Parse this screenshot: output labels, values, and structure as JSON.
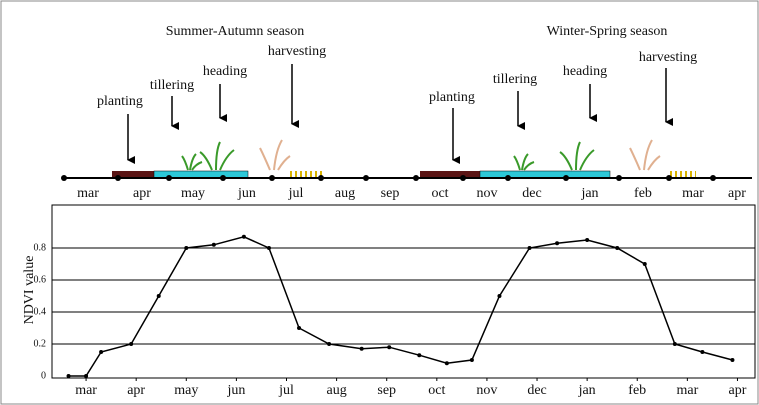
{
  "timeline": {
    "seasons": [
      "Summer-Autumn season",
      "Winter-Spring season"
    ],
    "stages": [
      [
        "planting",
        "tillering",
        "heading",
        "harvesting"
      ],
      [
        "planting",
        "tillering",
        "heading",
        "harvesting"
      ]
    ],
    "months": [
      "mar",
      "apr",
      "may",
      "jun",
      "jul",
      "aug",
      "sep",
      "oct",
      "nov",
      "dec",
      "jan",
      "feb",
      "mar",
      "apr"
    ]
  },
  "chart_data": {
    "type": "line",
    "y_label": "NDVI value",
    "x": [
      -0.35,
      0.0,
      0.3,
      0.9,
      1.45,
      2.0,
      2.55,
      3.15,
      3.65,
      4.25,
      4.85,
      5.5,
      6.05,
      6.65,
      7.2,
      7.7,
      8.25,
      8.85,
      9.4,
      10.0,
      10.6,
      11.15,
      11.75,
      12.3,
      12.9
    ],
    "series": [
      {
        "color": "#000000",
        "values": [
          0,
          0,
          0.15,
          0.2,
          0.5,
          0.8,
          0.82,
          0.87,
          0.8,
          0.3,
          0.2,
          0.17,
          0.18,
          0.13,
          0.08,
          0.1,
          0.5,
          0.8,
          0.83,
          0.85,
          0.8,
          0.7,
          0.2,
          0.15,
          0.1
        ]
      }
    ],
    "xlim": [
      -0.68,
      13.35
    ],
    "xticks": [
      {
        "value": 0,
        "label": "mar"
      },
      {
        "value": 1,
        "label": "apr"
      },
      {
        "value": 2,
        "label": "may"
      },
      {
        "value": 3,
        "label": "jun"
      },
      {
        "value": 4,
        "label": "jul"
      },
      {
        "value": 5,
        "label": "aug"
      },
      {
        "value": 6,
        "label": "sep"
      },
      {
        "value": 7,
        "label": "oct"
      },
      {
        "value": 8,
        "label": "nov"
      },
      {
        "value": 9,
        "label": "dec"
      },
      {
        "value": 10,
        "label": "jan"
      },
      {
        "value": 11,
        "label": "feb"
      },
      {
        "value": 12,
        "label": "mar"
      },
      {
        "value": 13,
        "label": "apr"
      }
    ],
    "ylim": [
      0,
      1
    ],
    "yticks": [
      0,
      0.2,
      0.4,
      0.6,
      0.8
    ],
    "grid": true
  }
}
